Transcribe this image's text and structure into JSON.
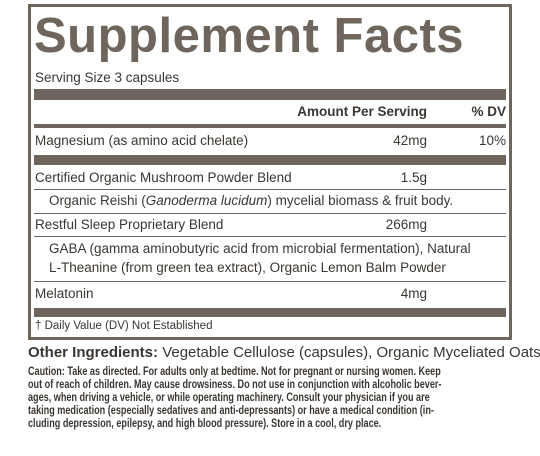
{
  "title": "Supplement Facts",
  "serving_size": "Serving Size 3 capsules",
  "header": {
    "amount": "Amount Per Serving",
    "dv": "% DV"
  },
  "rows": [
    {
      "name": "Magnesium (as amino acid chelate)",
      "amount": "42mg",
      "dv": "10%"
    },
    {
      "name": "Certified Organic Mushroom Powder Blend",
      "amount": "1.5g"
    },
    {
      "parts": [
        "Organic Reishi (",
        "Ganoderma lucidum",
        ") mycelial biomass & fruit body."
      ]
    },
    {
      "name": "Restful Sleep Proprietary Blend",
      "amount": "266mg"
    },
    {
      "lines": [
        "GABA (gamma aminobutyric acid from microbial fermentation), Natural",
        "L-Theanine (from green tea extract), Organic Lemon Balm Powder"
      ]
    },
    {
      "name": "Melatonin",
      "amount": "4mg"
    }
  ],
  "footnote": "† Daily Value (DV) Not Established",
  "other_ingredients": {
    "label": "Other Ingredients:",
    "text": "Vegetable Cellulose (capsules), Organic Myceliated Oats."
  },
  "caution": [
    "Caution: Take as directed. For adults only at bedtime. Not for pregnant or nursing women. Keep",
    "out of reach of children. May cause drowsiness. Do not use in conjunction with alcoholic bever-",
    "ages, when driving a vehicle, or while operating machinery. Consult your physician if you are",
    "taking medication (especially sedatives and anti-depressants) or have a medical condition (in-",
    "cluding depression, epilepsy, and high blood pressure). Store in a cool, dry place."
  ]
}
